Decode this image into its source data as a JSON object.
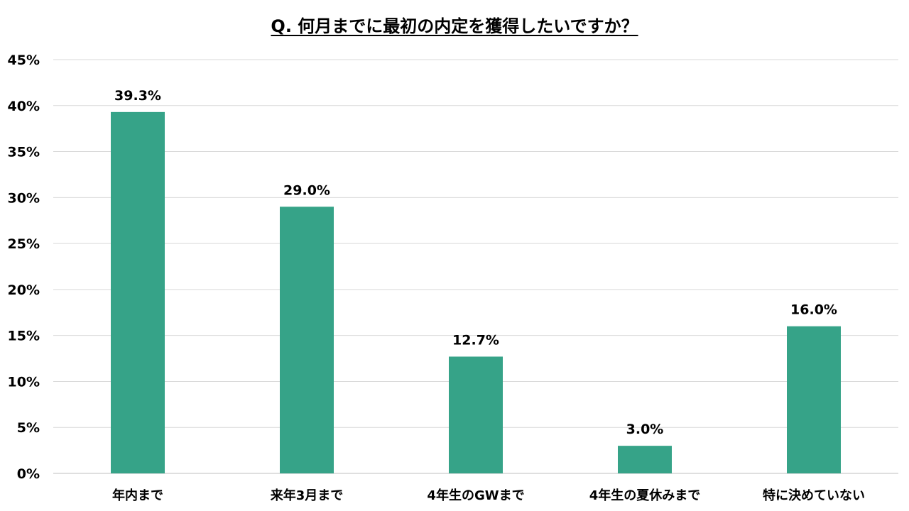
{
  "chart_data": {
    "type": "bar",
    "title": "Q. 何月までに最初の内定を獲得したいですか？",
    "categories": [
      "年内まで",
      "来年3月まで",
      "4年生のGWまで",
      "4年生の夏休みまで",
      "特に決めていない"
    ],
    "values": [
      39.3,
      29.0,
      12.7,
      3.0,
      16.0
    ],
    "value_labels": [
      "39.3%",
      "29.0%",
      "12.7%",
      "3.0%",
      "16.0%"
    ],
    "ylim": [
      0,
      45
    ],
    "yticks": [
      0,
      5,
      10,
      15,
      20,
      25,
      30,
      35,
      40,
      45
    ],
    "ytick_labels": [
      "0%",
      "5%",
      "10%",
      "15%",
      "20%",
      "25%",
      "30%",
      "35%",
      "40%",
      "45%"
    ],
    "xlabel": "",
    "ylabel": "",
    "grid": true,
    "legend": "none",
    "bar_color": "#36a388",
    "grid_color": "#d9d9d9"
  }
}
